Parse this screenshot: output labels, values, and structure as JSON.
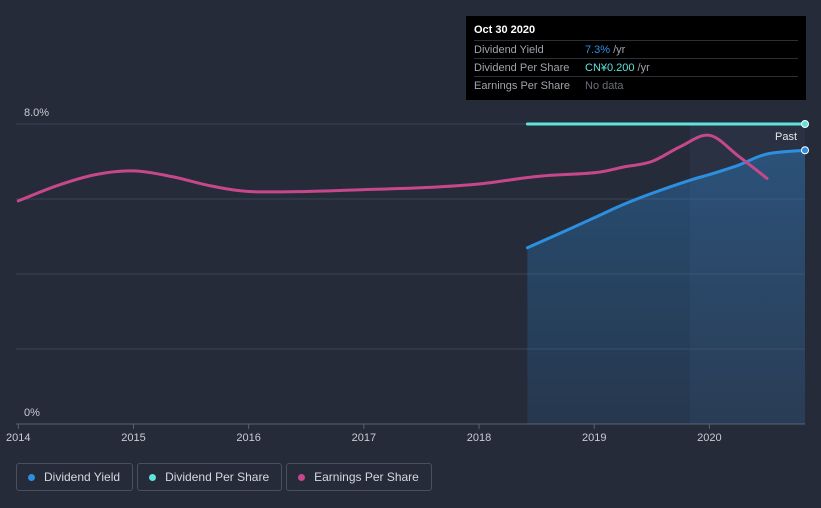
{
  "tooltip": {
    "date": "Oct 30 2020",
    "rows": [
      {
        "label": "Dividend Yield",
        "value": "7.3%",
        "unit": "/yr",
        "color": "#2d8fe0"
      },
      {
        "label": "Dividend Per Share",
        "value": "CN¥0.200",
        "unit": "/yr",
        "color": "#5fe3da"
      },
      {
        "label": "Earnings Per Share",
        "value": "No data",
        "unit": "",
        "color": "#6b6f78"
      }
    ]
  },
  "past_label": "Past",
  "legend": [
    {
      "label": "Dividend Yield",
      "color": "#2d8fe0"
    },
    {
      "label": "Dividend Per Share",
      "color": "#5fe3da"
    },
    {
      "label": "Earnings Per Share",
      "color": "#c7488a"
    }
  ],
  "chart_data": {
    "type": "line",
    "y_tick_labels": [
      "8.0%",
      "0%"
    ],
    "ylim": [
      0,
      8
    ],
    "x_tick_labels": [
      "2014",
      "2015",
      "2016",
      "2017",
      "2018",
      "2019",
      "2020"
    ],
    "xlim": [
      2013.98,
      2020.83
    ],
    "grid": true,
    "past_region_start": 2019.83,
    "series": [
      {
        "name": "Dividend Yield",
        "color": "#2d8fe0",
        "fill": true,
        "points": [
          [
            2018.42,
            4.7
          ],
          [
            2018.75,
            5.15
          ],
          [
            2019.0,
            5.5
          ],
          [
            2019.25,
            5.85
          ],
          [
            2019.5,
            6.15
          ],
          [
            2019.83,
            6.5
          ],
          [
            2020.0,
            6.65
          ],
          [
            2020.25,
            6.9
          ],
          [
            2020.5,
            7.2
          ],
          [
            2020.83,
            7.3
          ]
        ]
      },
      {
        "name": "Dividend Per Share",
        "color": "#5fe3da",
        "fill": false,
        "points": [
          [
            2018.42,
            8.0
          ],
          [
            2020.83,
            8.0
          ]
        ]
      },
      {
        "name": "Earnings Per Share",
        "color": "#c7488a",
        "fill": false,
        "points": [
          [
            2014.0,
            5.95
          ],
          [
            2014.33,
            6.35
          ],
          [
            2014.67,
            6.65
          ],
          [
            2015.0,
            6.75
          ],
          [
            2015.33,
            6.6
          ],
          [
            2015.67,
            6.35
          ],
          [
            2016.0,
            6.2
          ],
          [
            2016.5,
            6.2
          ],
          [
            2017.0,
            6.25
          ],
          [
            2017.5,
            6.3
          ],
          [
            2018.0,
            6.4
          ],
          [
            2018.5,
            6.6
          ],
          [
            2019.0,
            6.7
          ],
          [
            2019.25,
            6.85
          ],
          [
            2019.5,
            7.0
          ],
          [
            2019.75,
            7.4
          ],
          [
            2020.0,
            7.7
          ],
          [
            2020.25,
            7.15
          ],
          [
            2020.5,
            6.55
          ]
        ]
      }
    ]
  }
}
